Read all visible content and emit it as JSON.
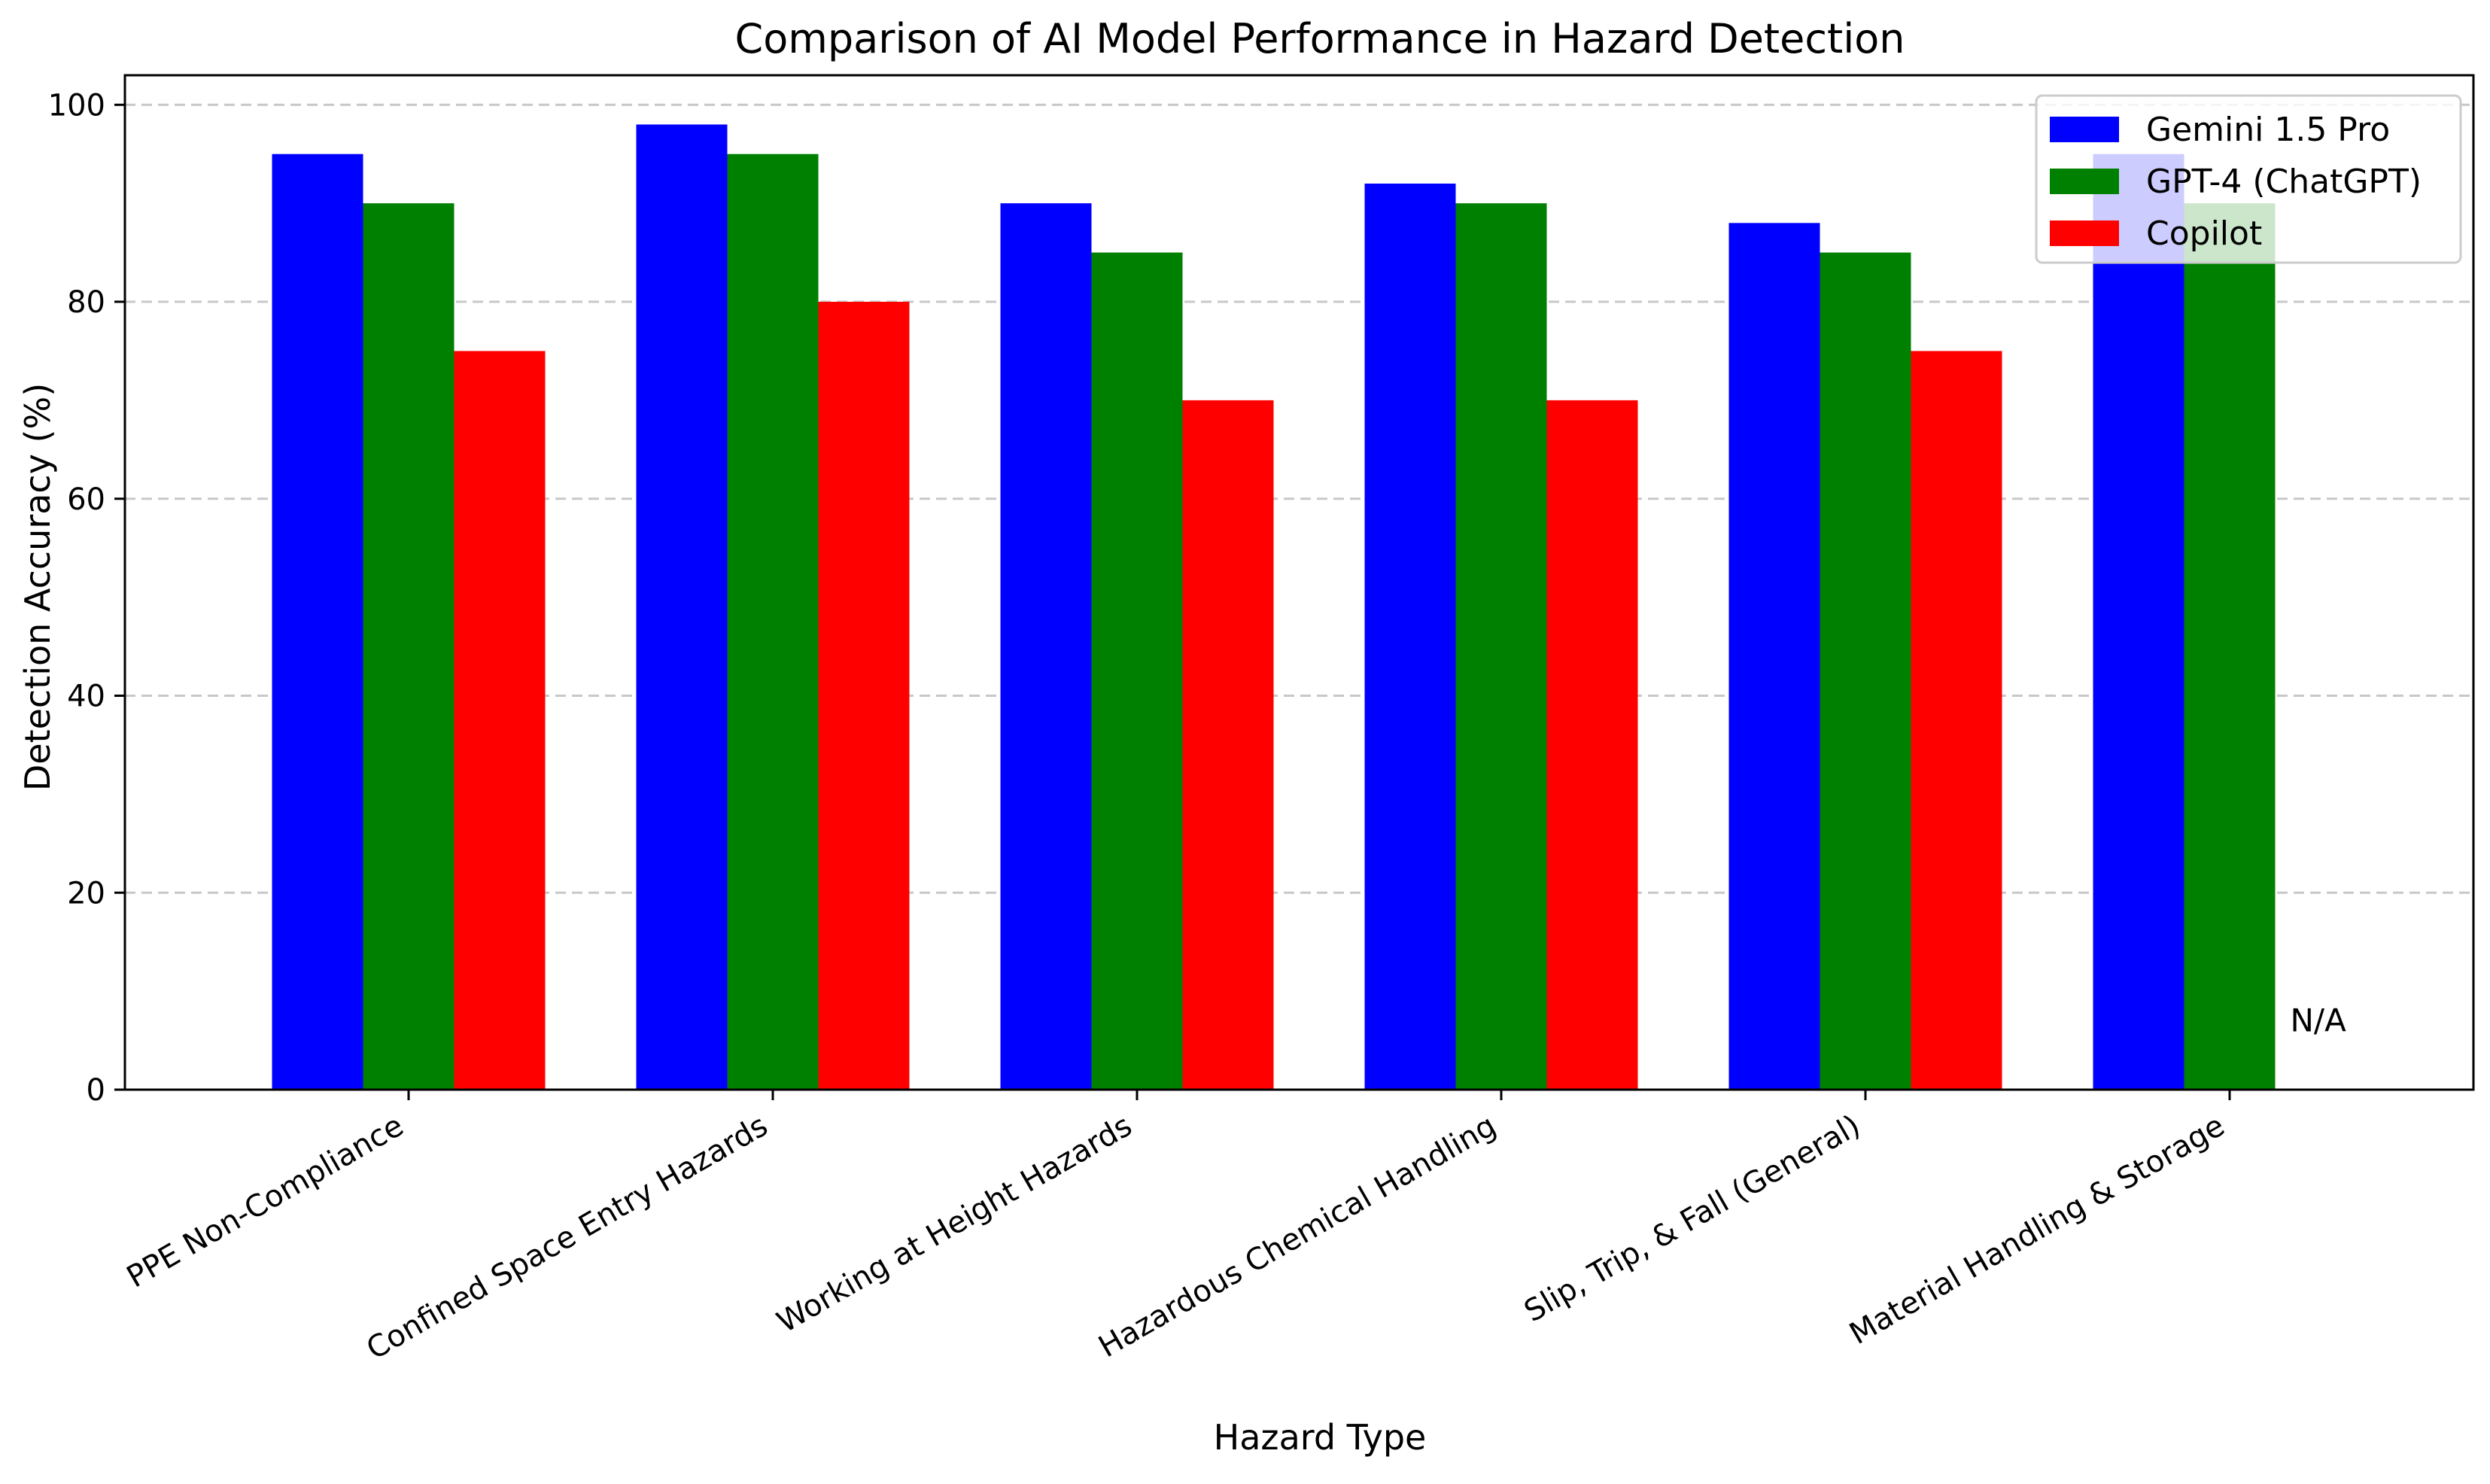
{
  "chart_data": {
    "type": "bar",
    "title": "Comparison of AI Model Performance in Hazard Detection",
    "xlabel": "Hazard Type",
    "ylabel": "Detection Accuracy (%)",
    "ylim": [
      0,
      103
    ],
    "yticks": [
      0,
      20,
      40,
      60,
      80,
      100
    ],
    "grid": "y-dashed",
    "legend_position": "top-right",
    "categories": [
      "PPE Non-Compliance",
      "Confined Space Entry Hazards",
      "Working at Height Hazards",
      "Hazardous Chemical Handling",
      "Slip, Trip, & Fall (General)",
      "Material Handling & Storage"
    ],
    "series": [
      {
        "name": "Gemini 1.5 Pro",
        "color": "#0000ff",
        "values": [
          95,
          98,
          90,
          92,
          88,
          95
        ]
      },
      {
        "name": "GPT-4 (ChatGPT)",
        "color": "#008000",
        "values": [
          90,
          95,
          85,
          90,
          85,
          90
        ]
      },
      {
        "name": "Copilot",
        "color": "#ff0000",
        "values": [
          75,
          80,
          70,
          70,
          75,
          null
        ]
      }
    ],
    "annotations": [
      {
        "text": "N/A",
        "series": "Copilot",
        "category": "Material Handling & Storage",
        "y": 7
      }
    ]
  }
}
